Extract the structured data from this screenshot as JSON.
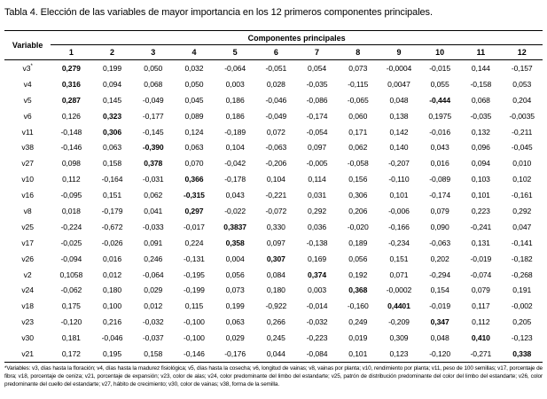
{
  "title": "Tabla 4. Elección de las variables de mayor importancia en los 12 primeros componentes principales.",
  "table": {
    "variable_header": "Variable",
    "group_header": "Componentes principales",
    "component_columns": [
      "1",
      "2",
      "3",
      "4",
      "5",
      "6",
      "7",
      "8",
      "9",
      "10",
      "11",
      "12"
    ],
    "rows": [
      {
        "variable": "v3*",
        "values": [
          "0,279",
          "0,199",
          "0,050",
          "0,032",
          "-0,064",
          "-0,051",
          "0,054",
          "0,073",
          "-0,0004",
          "-0,015",
          "0,144",
          "-0,157"
        ],
        "bold": [
          0
        ]
      },
      {
        "variable": "v4",
        "values": [
          "0,316",
          "0,094",
          "0,068",
          "0,050",
          "0,003",
          "0,028",
          "-0,035",
          "-0,115",
          "0,0047",
          "0,055",
          "-0,158",
          "0,053"
        ],
        "bold": [
          0
        ]
      },
      {
        "variable": "v5",
        "values": [
          "0,287",
          "0,145",
          "-0,049",
          "0,045",
          "0,186",
          "-0,046",
          "-0,086",
          "-0,065",
          "0,048",
          "-0,444",
          "0,068",
          "0,204"
        ],
        "bold": [
          0,
          9
        ]
      },
      {
        "variable": "v6",
        "values": [
          "0,126",
          "0,323",
          "-0,177",
          "0,089",
          "0,186",
          "-0,049",
          "-0,174",
          "0,060",
          "0,138",
          "0,1975",
          "-0,035",
          "-0,0035"
        ],
        "bold": [
          1
        ]
      },
      {
        "variable": "v11",
        "values": [
          "-0,148",
          "0,306",
          "-0,145",
          "0,124",
          "-0,189",
          "0,072",
          "-0,054",
          "0,171",
          "0,142",
          "-0,016",
          "0,132",
          "-0,211"
        ],
        "bold": [
          1
        ]
      },
      {
        "variable": "v38",
        "values": [
          "-0,146",
          "0,063",
          "-0,390",
          "0,063",
          "0,104",
          "-0,063",
          "0,097",
          "0,062",
          "0,140",
          "0,043",
          "0,096",
          "-0,045"
        ],
        "bold": [
          2
        ]
      },
      {
        "variable": "v27",
        "values": [
          "0,098",
          "0,158",
          "0,378",
          "0,070",
          "-0,042",
          "-0,206",
          "-0,005",
          "-0,058",
          "-0,207",
          "0,016",
          "0,094",
          "0,010"
        ],
        "bold": [
          2
        ]
      },
      {
        "variable": "v10",
        "values": [
          "0,112",
          "-0,164",
          "-0,031",
          "0,366",
          "-0,178",
          "0,104",
          "0,114",
          "0,156",
          "-0,110",
          "-0,089",
          "0,103",
          "0,102"
        ],
        "bold": [
          3
        ]
      },
      {
        "variable": "v16",
        "values": [
          "-0,095",
          "0,151",
          "0,062",
          "-0,315",
          "0,043",
          "-0,221",
          "0,031",
          "0,306",
          "0,101",
          "-0,174",
          "0,101",
          "-0,161"
        ],
        "bold": [
          3
        ]
      },
      {
        "variable": "v8",
        "values": [
          "0,018",
          "-0,179",
          "0,041",
          "0,297",
          "-0,022",
          "-0,072",
          "0,292",
          "0,206",
          "-0,006",
          "0,079",
          "0,223",
          "0,292"
        ],
        "bold": [
          3
        ]
      },
      {
        "variable": "v25",
        "values": [
          "-0,224",
          "-0,672",
          "-0,033",
          "-0,017",
          "0,3837",
          "0,330",
          "0,036",
          "-0,020",
          "-0,166",
          "0,090",
          "-0,241",
          "0,047"
        ],
        "bold": [
          4
        ]
      },
      {
        "variable": "v17",
        "values": [
          "-0,025",
          "-0,026",
          "0,091",
          "0,224",
          "0,358",
          "0,097",
          "-0,138",
          "0,189",
          "-0,234",
          "-0,063",
          "0,131",
          "-0,141"
        ],
        "bold": [
          4
        ]
      },
      {
        "variable": "v26",
        "values": [
          "-0,094",
          "0,016",
          "0,246",
          "-0,131",
          "0,004",
          "0,307",
          "0,169",
          "0,056",
          "0,151",
          "0,202",
          "-0,019",
          "-0,182"
        ],
        "bold": [
          5
        ]
      },
      {
        "variable": "v2",
        "values": [
          "0,1058",
          "0,012",
          "-0,064",
          "-0,195",
          "0,056",
          "0,084",
          "0,374",
          "0,192",
          "0,071",
          "-0,294",
          "-0,074",
          "-0,268"
        ],
        "bold": [
          6
        ]
      },
      {
        "variable": "v24",
        "values": [
          "-0,062",
          "0,180",
          "0,029",
          "-0,199",
          "0,073",
          "0,180",
          "0,003",
          "0,368",
          "-0,0002",
          "0,154",
          "0,079",
          "0,191"
        ],
        "bold": [
          7
        ]
      },
      {
        "variable": "v18",
        "values": [
          "0,175",
          "0,100",
          "0,012",
          "0,115",
          "0,199",
          "-0,922",
          "-0,014",
          "-0,160",
          "0,4401",
          "-0,019",
          "0,117",
          "-0,002"
        ],
        "bold": [
          8
        ]
      },
      {
        "variable": "v23",
        "values": [
          "-0,120",
          "0,216",
          "-0,032",
          "-0,100",
          "0,063",
          "0,266",
          "-0,032",
          "0,249",
          "-0,209",
          "0,347",
          "0,112",
          "0,205"
        ],
        "bold": [
          9
        ]
      },
      {
        "variable": "v30",
        "values": [
          "0,181",
          "-0,046",
          "-0,037",
          "-0,100",
          "0,029",
          "0,245",
          "-0,223",
          "0,019",
          "0,309",
          "0,048",
          "0,410",
          "-0,123"
        ],
        "bold": [
          10
        ]
      },
      {
        "variable": "v21",
        "values": [
          "0,172",
          "0,195",
          "0,158",
          "-0,146",
          "-0,176",
          "0,044",
          "-0,084",
          "0,101",
          "0,123",
          "-0,120",
          "-0,271",
          "0,338"
        ],
        "bold": [
          11
        ]
      }
    ]
  },
  "footnote": "*Variables: v3, días hasta la floración; v4, días hasta la madurez fisiológica; v5, días hasta la cosecha; v6, longitud de vainas; v8, vainas por planta; v10, rendimiento por planta; v11, peso de 100 semillas; v17, porcentaje de fibra; v18, porcentaje de ceniza; v21, porcentaje de expansión; v23, color de alas; v24, color predominante del limbo del estandarte; v25, patrón de distribución predominante del color del limbo del estandarte; v26, color predominante del cuello del estandarte; v27, hábito de crecimiento; v30, color de vainas; v38, forma de la semilla."
}
